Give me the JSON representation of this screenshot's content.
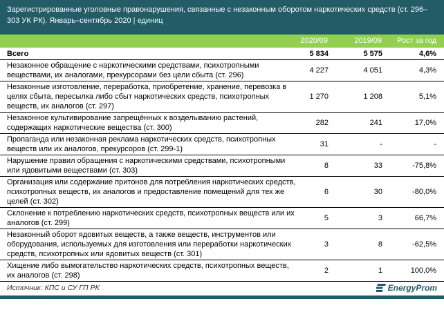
{
  "title": "Зарегистрированные уголовные правонарушения, связанные с незаконным оборотом наркотических средств (ст. 296–303 УК РК). Январь–сентябрь 2020",
  "unit": "единиц",
  "columns": [
    "2020/09",
    "2019/09",
    "Рост за год"
  ],
  "total": {
    "label": "Всего",
    "v1": "5 834",
    "v2": "5 575",
    "growth": "4,6%"
  },
  "rows": [
    {
      "label": "Незаконное обращение с наркотическими средствами, психотропными веществами, их аналогами, прекурсорами без цели сбыта (ст. 296)",
      "v1": "4 227",
      "v2": "4 051",
      "growth": "4,3%"
    },
    {
      "label": "Незаконные изготовление, переработка, приобретение, хранение, перевозка в целях сбыта, пересылка либо сбыт наркотических средств, психотропных веществ, их аналогов (ст. 297)",
      "v1": "1 270",
      "v2": "1 208",
      "growth": "5,1%"
    },
    {
      "label": "Незаконное культивирование запрещённых к возделыванию растений, содержащих наркотические вещества (ст. 300)",
      "v1": "282",
      "v2": "241",
      "growth": "17,0%"
    },
    {
      "label": "Пропаганда или незаконная реклама наркотических средств, психотропных веществ или их аналогов, прекурсоров (ст. 299-1)",
      "v1": "31",
      "v2": "-",
      "growth": "-"
    },
    {
      "label": "Нарушение правил обращения с наркотическими средствами, психотропными или ядовитыми веществами (ст. 303)",
      "v1": "8",
      "v2": "33",
      "growth": "-75,8%"
    },
    {
      "label": "Организация или содержание притонов для потребления наркотических средств, психотропных веществ, их аналогов и предоставление помещений для тех же целей (ст. 302)",
      "v1": "6",
      "v2": "30",
      "growth": "-80,0%"
    },
    {
      "label": "Склонение к потреблению наркотических средств, психотропных веществ или их аналогов (ст. 299)",
      "v1": "5",
      "v2": "3",
      "growth": "66,7%"
    },
    {
      "label": "Незаконный оборот ядовитых веществ, а также веществ, инструментов или оборудования, используемых для изготовления или переработки наркотических средств, психотропных или ядовитых веществ (ст. 301)",
      "v1": "3",
      "v2": "8",
      "growth": "-62,5%"
    },
    {
      "label": "Хищение либо вымогательство наркотических средств, психотропных веществ, их аналогов (ст. 298)",
      "v1": "2",
      "v2": "1",
      "growth": "100,0%"
    }
  ],
  "source": "Источник: КПС и СУ ГП РК",
  "logo": "EnergyProm",
  "colors": {
    "header": "#235b67",
    "accent": "#92d050"
  }
}
